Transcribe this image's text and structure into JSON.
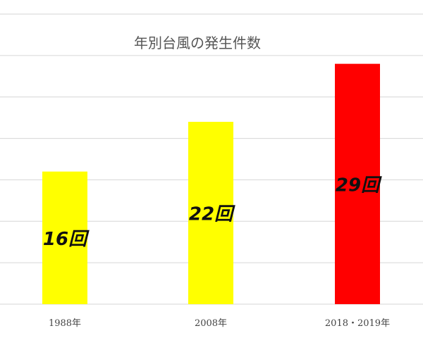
{
  "chart_data": {
    "type": "bar",
    "title": "年別台風の発生件数",
    "categories": [
      "1988年",
      "2008年",
      "2018・2019年"
    ],
    "values": [
      16,
      22,
      29
    ],
    "data_labels": [
      "16回",
      "22回",
      "29回"
    ],
    "bar_colors": [
      "#ffff00",
      "#ffff00",
      "#ff0000"
    ],
    "ylim": [
      0,
      35
    ],
    "gridlines": true,
    "legend": "none",
    "xlabel": "",
    "ylabel": ""
  }
}
